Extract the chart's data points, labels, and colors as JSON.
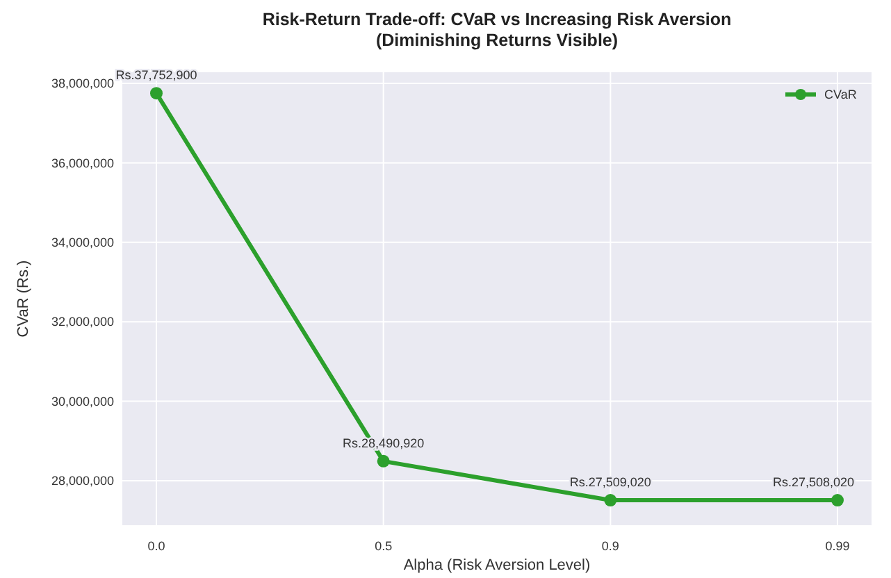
{
  "chart_data": {
    "type": "line",
    "title": "Risk-Return Trade-off: CVaR vs Increasing Risk Aversion\n(Diminishing Returns Visible)",
    "xlabel": "Alpha (Risk Aversion Level)",
    "ylabel": "CVaR (Rs.)",
    "categories": [
      "0.0",
      "0.5",
      "0.9",
      "0.99"
    ],
    "series": [
      {
        "name": "CVaR",
        "color": "#2ca02c",
        "values": [
          37752900,
          28490920,
          27509020,
          27508020
        ],
        "value_labels": [
          "Rs.37,752,900",
          "Rs.28,490,920",
          "Rs.27,509,020",
          "Rs.27,508,020"
        ]
      }
    ],
    "ylim": [
      26880000,
      38280000
    ],
    "yticks": [
      {
        "value": 28000000,
        "label": "28,000,000"
      },
      {
        "value": 30000000,
        "label": "30,000,000"
      },
      {
        "value": 32000000,
        "label": "32,000,000"
      },
      {
        "value": 34000000,
        "label": "34,000,000"
      },
      {
        "value": 36000000,
        "label": "36,000,000"
      },
      {
        "value": 38000000,
        "label": "38,000,000"
      }
    ],
    "grid": true,
    "legend": "top right",
    "marker": "circle",
    "line_style": "solid"
  }
}
